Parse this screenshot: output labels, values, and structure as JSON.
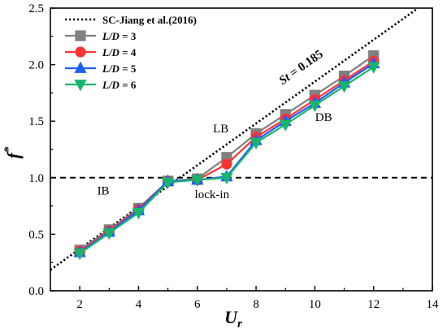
{
  "chart_data": {
    "type": "line",
    "xlim": [
      1,
      14
    ],
    "ylim": [
      0.0,
      2.5
    ],
    "x_ticks": [
      "2",
      "4",
      "6",
      "8",
      "10",
      "12",
      "14"
    ],
    "y_ticks": [
      "0.0",
      "0.5",
      "1.0",
      "1.5",
      "2.0",
      "2.5"
    ],
    "xlabel": {
      "main": "U",
      "sub": "r"
    },
    "ylabel": {
      "main": "f",
      "sup": "*"
    },
    "legend_position": "top-left",
    "grid": false,
    "reference_line": {
      "name": "SC-Jiang et al.(2016)",
      "style": "dotted",
      "color": "#000000",
      "x": [
        1,
        13.5
      ],
      "y": [
        0.185,
        2.4975
      ]
    },
    "horizontal_line": {
      "y": 1.0,
      "style": "dashed",
      "color": "#000000"
    },
    "series": [
      {
        "name": "L/D = 3",
        "label_italic": "L/D",
        "label_rest": " = 3",
        "marker": "square",
        "color": "#808080",
        "x": [
          2,
          3,
          4,
          5,
          6,
          7,
          8,
          9,
          10,
          11,
          12
        ],
        "y": [
          0.36,
          0.54,
          0.73,
          0.97,
          0.99,
          1.18,
          1.39,
          1.56,
          1.73,
          1.9,
          2.08
        ]
      },
      {
        "name": "L/D = 4",
        "label_italic": "L/D",
        "label_rest": " = 4",
        "marker": "circle",
        "color": "#ff3333",
        "x": [
          2,
          3,
          4,
          5,
          6,
          7,
          8,
          9,
          10,
          11,
          12
        ],
        "y": [
          0.35,
          0.53,
          0.72,
          0.97,
          0.98,
          1.12,
          1.36,
          1.52,
          1.69,
          1.86,
          2.03
        ]
      },
      {
        "name": "L/D = 5",
        "label_italic": "L/D",
        "label_rest": " = 5",
        "marker": "triangle-up",
        "color": "#1a5fff",
        "x": [
          2,
          3,
          4,
          5,
          6,
          7,
          8,
          9,
          10,
          11,
          12
        ],
        "y": [
          0.34,
          0.52,
          0.71,
          0.97,
          0.98,
          1.01,
          1.33,
          1.5,
          1.66,
          1.84,
          2.01
        ]
      },
      {
        "name": "L/D = 6",
        "label_italic": "L/D",
        "label_rest": " = 6",
        "marker": "triangle-down",
        "color": "#18b46e",
        "x": [
          2,
          3,
          4,
          5,
          6,
          7,
          8,
          9,
          10,
          11,
          12
        ],
        "y": [
          0.33,
          0.51,
          0.69,
          0.96,
          0.98,
          1.0,
          1.31,
          1.47,
          1.64,
          1.81,
          1.98
        ]
      }
    ],
    "annotations": [
      {
        "name": "ib-label",
        "text": "IB",
        "x": 2.8,
        "y": 0.85,
        "style": "normal"
      },
      {
        "name": "lb-label",
        "text": "LB",
        "x": 6.8,
        "y": 1.4,
        "style": "normal"
      },
      {
        "name": "db-label",
        "text": "DB",
        "x": 10.3,
        "y": 1.5,
        "style": "normal"
      },
      {
        "name": "lock-in-label",
        "text": "lock-in",
        "x": 6.5,
        "y": 0.82,
        "style": "normal"
      },
      {
        "name": "st-label",
        "text_italic": "St",
        "text_rest": " = 0.185",
        "x": 8.9,
        "y": 1.82,
        "style": "bold-rotated"
      }
    ]
  }
}
